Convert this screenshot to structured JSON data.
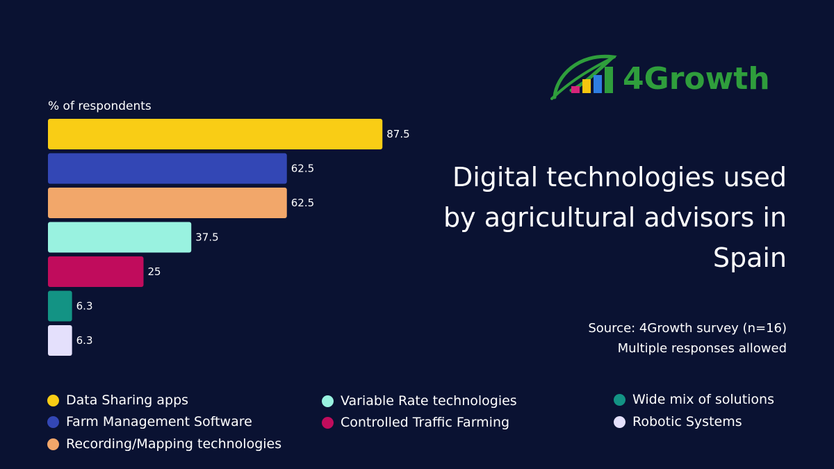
{
  "logo": {
    "text": "4Growth",
    "green": "#2f9e3c",
    "bar_colors": [
      "#d6247a",
      "#f6c60f",
      "#2f7de1",
      "#2f9e3c"
    ]
  },
  "title": "Digital technologies used by agricultural advisors in Spain",
  "source": {
    "line1": "Source: 4Growth survey (n=16)",
    "line2": "Multiple responses allowed"
  },
  "chart_data": {
    "type": "bar",
    "orientation": "horizontal",
    "ylabel": "% of respondents",
    "categories": [
      "Data Sharing apps",
      "Farm Management Software",
      "Recording/Mapping technologies",
      "Variable Rate technologies",
      "Controlled Traffic Farming",
      "Wide mix of solutions",
      "Robotic Systems"
    ],
    "values": [
      87.5,
      62.5,
      62.5,
      37.5,
      25,
      6.3,
      6.3
    ],
    "labels": [
      "87.5",
      "62.5",
      "62.5",
      "37.5",
      "25",
      "6.3",
      "6.3"
    ],
    "colors": [
      "#f9cd15",
      "#3347b5",
      "#f2a76a",
      "#99f2e0",
      "#c00c5c",
      "#139384",
      "#e4e0fc"
    ],
    "xlim": [
      0,
      100
    ],
    "legend": "bottom"
  }
}
